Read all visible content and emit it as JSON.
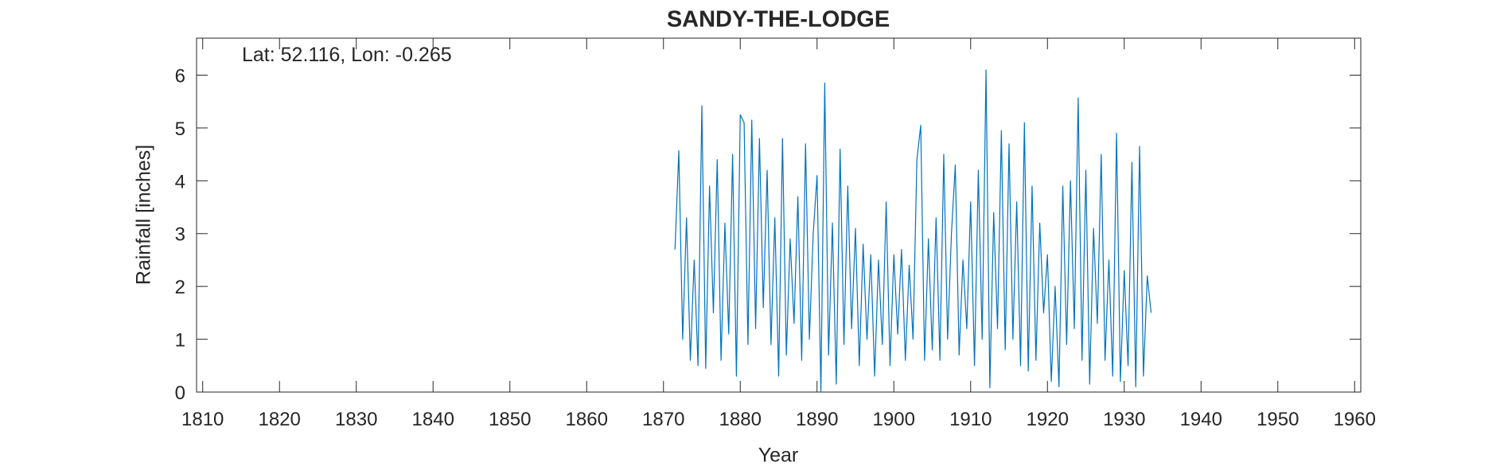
{
  "chart_data": {
    "type": "line",
    "title": "SANDY-THE-LODGE",
    "annotation": "Lat: 52.116, Lon: -0.265",
    "x_label": "Year",
    "y_label": "Rainfall [inches]",
    "xlim": [
      1809.2,
      1960.8
    ],
    "ylim": [
      0,
      6.7
    ],
    "xticks": [
      1810,
      1820,
      1830,
      1840,
      1850,
      1860,
      1870,
      1880,
      1890,
      1900,
      1910,
      1920,
      1930,
      1940,
      1950,
      1960
    ],
    "yticks": [
      0,
      1,
      2,
      3,
      4,
      5,
      6
    ],
    "x": [
      1871.5,
      1872,
      1872.5,
      1873,
      1873.5,
      1874,
      1874.5,
      1875,
      1875.5,
      1876,
      1876.5,
      1877,
      1877.5,
      1878,
      1878.5,
      1879,
      1879.5,
      1880,
      1880.5,
      1881,
      1881.5,
      1882,
      1882.5,
      1883,
      1883.5,
      1884,
      1884.5,
      1885,
      1885.5,
      1886,
      1886.5,
      1887,
      1887.5,
      1888,
      1888.5,
      1889,
      1889.5,
      1890,
      1890.5,
      1891,
      1891.5,
      1892,
      1892.5,
      1893,
      1893.5,
      1894,
      1894.5,
      1895,
      1895.5,
      1896,
      1896.5,
      1897,
      1897.5,
      1898,
      1898.5,
      1899,
      1899.5,
      1900,
      1900.5,
      1901,
      1901.5,
      1902,
      1902.5,
      1903,
      1903.5,
      1904,
      1904.5,
      1905,
      1905.5,
      1906,
      1906.5,
      1907,
      1907.5,
      1908,
      1908.5,
      1909,
      1909.5,
      1910,
      1910.5,
      1911,
      1911.5,
      1912,
      1912.5,
      1913,
      1913.5,
      1914,
      1914.5,
      1915,
      1915.5,
      1916,
      1916.5,
      1917,
      1917.5,
      1918,
      1918.5,
      1919,
      1919.5,
      1920,
      1920.5,
      1921,
      1921.5,
      1922,
      1922.5,
      1923,
      1923.5,
      1924,
      1924.5,
      1925,
      1925.5,
      1926,
      1926.5,
      1927,
      1927.5,
      1928,
      1928.5,
      1929,
      1929.5,
      1930,
      1930.5,
      1931,
      1931.5,
      1932,
      1932.5,
      1933,
      1933.5
    ],
    "series": [
      {
        "color": "#0072bd",
        "values": [
          2.7,
          4.57,
          1.0,
          3.3,
          0.6,
          2.5,
          0.5,
          5.42,
          0.45,
          3.9,
          1.5,
          4.4,
          0.6,
          3.2,
          1.1,
          4.5,
          0.3,
          5.25,
          5.1,
          0.9,
          5.15,
          1.2,
          4.8,
          1.6,
          4.2,
          0.9,
          3.3,
          0.3,
          4.8,
          0.7,
          2.9,
          1.3,
          3.7,
          0.6,
          4.7,
          1.0,
          3.0,
          4.1,
          0.0,
          5.85,
          0.7,
          3.2,
          0.15,
          4.6,
          0.9,
          3.9,
          1.2,
          3.1,
          0.5,
          2.8,
          1.0,
          2.6,
          0.3,
          2.5,
          0.9,
          3.6,
          0.5,
          2.6,
          1.1,
          2.7,
          0.6,
          2.4,
          1.0,
          4.4,
          5.05,
          0.6,
          2.9,
          0.8,
          3.3,
          0.6,
          4.5,
          1.0,
          3.0,
          4.3,
          0.7,
          2.5,
          1.2,
          3.6,
          0.5,
          4.2,
          1.0,
          6.1,
          0.08,
          3.4,
          1.2,
          4.95,
          0.8,
          4.7,
          1.0,
          3.6,
          0.5,
          5.1,
          0.4,
          3.9,
          0.6,
          3.2,
          1.5,
          2.6,
          0.2,
          2.0,
          0.1,
          3.9,
          0.9,
          4.0,
          1.2,
          5.57,
          0.6,
          4.2,
          0.15,
          3.1,
          1.3,
          4.5,
          0.6,
          2.5,
          0.3,
          4.9,
          0.2,
          2.3,
          0.5,
          4.35,
          0.1,
          4.65,
          0.3,
          2.2,
          1.5
        ]
      }
    ]
  }
}
